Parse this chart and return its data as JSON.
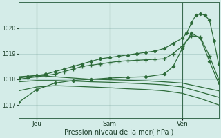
{
  "background_color": "#d4ece8",
  "grid_color": "#aaccc7",
  "line_color": "#2d6b3a",
  "title": "Pression niveau de la mer( hPa )",
  "ylim": [
    1016.5,
    1021.0
  ],
  "yticks": [
    1017,
    1018,
    1019,
    1020
  ],
  "xlim": [
    0,
    44
  ],
  "xtick_positions": [
    4,
    20,
    36
  ],
  "xtick_labels": [
    "Jeu",
    "Sam",
    "Ven"
  ],
  "vline_positions": [
    4,
    20,
    36
  ],
  "vline_color": "#3a6b50",
  "series": [
    {
      "x": [
        0,
        2,
        4,
        6,
        8,
        10,
        12,
        14,
        16,
        18,
        20,
        22,
        24,
        26,
        28,
        30,
        32,
        34,
        36,
        37,
        38,
        39,
        40,
        41,
        42,
        43,
        44
      ],
      "y": [
        1018.05,
        1018.1,
        1018.15,
        1018.2,
        1018.3,
        1018.4,
        1018.5,
        1018.6,
        1018.7,
        1018.8,
        1018.85,
        1018.9,
        1018.95,
        1019.0,
        1019.05,
        1019.1,
        1019.2,
        1019.4,
        1019.6,
        1019.8,
        1020.2,
        1020.5,
        1020.55,
        1020.5,
        1020.3,
        1019.5,
        1018.6
      ],
      "marker": "D",
      "markersize": 2.2,
      "linewidth": 0.9
    },
    {
      "x": [
        0,
        2,
        4,
        6,
        8,
        10,
        12,
        14,
        16,
        18,
        20,
        22,
        24,
        26,
        28,
        30,
        32,
        34,
        36,
        38,
        40,
        42,
        44
      ],
      "y": [
        1018.0,
        1018.05,
        1018.1,
        1018.15,
        1018.2,
        1018.3,
        1018.4,
        1018.5,
        1018.55,
        1018.6,
        1018.65,
        1018.7,
        1018.72,
        1018.74,
        1018.76,
        1018.78,
        1018.8,
        1019.0,
        1019.3,
        1019.7,
        1019.65,
        1018.9,
        1018.0
      ],
      "marker": "+",
      "markersize": 4.0,
      "linewidth": 0.9
    },
    {
      "x": [
        0,
        4,
        8,
        12,
        16,
        20,
        24,
        28,
        32,
        34,
        36,
        38,
        40,
        42,
        44
      ],
      "y": [
        1017.1,
        1017.6,
        1017.85,
        1017.95,
        1018.0,
        1018.05,
        1018.08,
        1018.1,
        1018.2,
        1018.5,
        1019.2,
        1019.8,
        1019.6,
        1018.7,
        1017.85
      ],
      "marker": "D",
      "markersize": 2.2,
      "linewidth": 0.9
    },
    {
      "x": [
        0,
        4,
        8,
        12,
        16,
        20,
        24,
        28,
        32,
        36,
        40,
        44
      ],
      "y": [
        1018.1,
        1018.15,
        1018.1,
        1018.05,
        1018.0,
        1017.98,
        1017.96,
        1017.94,
        1017.9,
        1017.85,
        1017.7,
        1017.55
      ],
      "marker": null,
      "markersize": 0,
      "linewidth": 0.9
    },
    {
      "x": [
        0,
        4,
        8,
        12,
        16,
        20,
        24,
        28,
        32,
        36,
        40,
        44
      ],
      "y": [
        1017.9,
        1017.95,
        1017.95,
        1017.93,
        1017.9,
        1017.88,
        1017.85,
        1017.82,
        1017.78,
        1017.7,
        1017.5,
        1017.3
      ],
      "marker": null,
      "markersize": 0,
      "linewidth": 0.9
    },
    {
      "x": [
        0,
        4,
        8,
        12,
        16,
        20,
        24,
        28,
        32,
        36,
        40,
        44
      ],
      "y": [
        1017.55,
        1017.7,
        1017.75,
        1017.73,
        1017.7,
        1017.67,
        1017.63,
        1017.6,
        1017.55,
        1017.45,
        1017.25,
        1017.0
      ],
      "marker": null,
      "markersize": 0,
      "linewidth": 0.9
    }
  ]
}
